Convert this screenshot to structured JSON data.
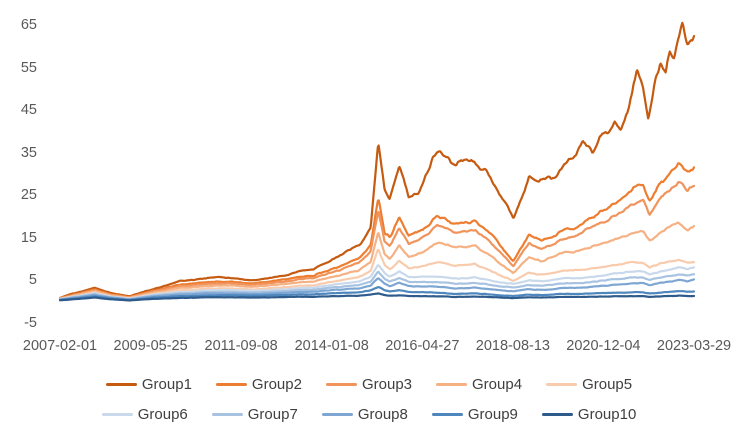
{
  "chart_data": {
    "type": "line",
    "title": "",
    "grid": false,
    "legend_position": "bottom",
    "x_axis": {
      "tick_labels": [
        "2007-02-01",
        "2009-05-25",
        "2011-09-08",
        "2014-01-08",
        "2016-04-27",
        "2018-08-13",
        "2020-12-04",
        "2023-03-29"
      ]
    },
    "y_axis": {
      "ticks": [
        "65",
        "55",
        "45",
        "35",
        "25",
        "15",
        "5",
        "-5"
      ],
      "min": -5,
      "max": 67
    },
    "t_grid": [
      0,
      0.03,
      0.055,
      0.08,
      0.11,
      0.15,
      0.19,
      0.23,
      0.27,
      0.3,
      0.33,
      0.36,
      0.4,
      0.44,
      0.47,
      0.49,
      0.502,
      0.512,
      0.52,
      0.535,
      0.55,
      0.575,
      0.595,
      0.625,
      0.655,
      0.685,
      0.715,
      0.74,
      0.76,
      0.785,
      0.81,
      0.83,
      0.855,
      0.875,
      0.89,
      0.905,
      0.92,
      0.93,
      0.945,
      0.96,
      0.975,
      0.99,
      1.0
    ],
    "series": [
      {
        "name": "Group1",
        "color": "#C55A11",
        "t": [
          0,
          0.015,
          0.03,
          0.055,
          0.08,
          0.11,
          0.15,
          0.19,
          0.22,
          0.25,
          0.28,
          0.3,
          0.33,
          0.36,
          0.4,
          0.42,
          0.44,
          0.455,
          0.475,
          0.49,
          0.502,
          0.512,
          0.52,
          0.535,
          0.55,
          0.565,
          0.58,
          0.595,
          0.61,
          0.625,
          0.64,
          0.655,
          0.67,
          0.69,
          0.703,
          0.715,
          0.73,
          0.74,
          0.755,
          0.77,
          0.785,
          0.8,
          0.815,
          0.825,
          0.84,
          0.855,
          0.875,
          0.885,
          0.895,
          0.91,
          0.92,
          0.928,
          0.94,
          0.948,
          0.955,
          0.962,
          0.968,
          0.975,
          0.982,
          0.99,
          1.0
        ],
        "v": [
          0.8,
          1.6,
          2.2,
          3.2,
          2.0,
          1.2,
          3.0,
          4.8,
          5.2,
          5.6,
          5.3,
          4.8,
          5.4,
          6.2,
          7.8,
          9.0,
          10.5,
          11.8,
          13.5,
          17.0,
          37.0,
          26.0,
          24.0,
          32.0,
          24.5,
          26.0,
          31.0,
          34.8,
          33.0,
          32.0,
          33.5,
          31.5,
          30.5,
          26.0,
          23.5,
          20.0,
          25.0,
          30.0,
          28.5,
          29.5,
          30.0,
          32.5,
          34.5,
          38.0,
          35.0,
          39.0,
          41.5,
          40.5,
          44.0,
          54.5,
          50.5,
          43.5,
          54.5,
          56.5,
          54.0,
          59.0,
          57.0,
          61.5,
          65.0,
          61.5,
          63.5
        ]
      },
      {
        "name": "Group2",
        "color": "#ED7D31",
        "v": [
          0.7,
          1.9,
          2.8,
          1.7,
          1.0,
          2.6,
          4.0,
          4.4,
          4.6,
          4.1,
          4.6,
          5.2,
          6.2,
          8.0,
          10.0,
          13.0,
          24.0,
          16.0,
          15.0,
          19.5,
          15.5,
          17.5,
          19.5,
          18.0,
          18.5,
          15.0,
          9.6,
          16.0,
          14.5,
          16.0,
          17.0,
          19.0,
          21.0,
          23.0,
          24.5,
          26.5,
          27.5,
          24.0,
          28.0,
          30.0,
          32.5,
          30.5,
          32.0
        ]
      },
      {
        "name": "Group3",
        "color": "#F0945C",
        "v": [
          0.7,
          1.8,
          2.6,
          1.6,
          0.9,
          2.4,
          3.6,
          4.0,
          4.2,
          3.8,
          4.2,
          4.7,
          5.6,
          7.2,
          9.0,
          11.5,
          21.0,
          14.0,
          13.0,
          17.0,
          13.5,
          15.5,
          17.5,
          16.0,
          16.5,
          13.0,
          8.5,
          14.0,
          12.5,
          14.0,
          15.0,
          17.0,
          18.5,
          20.0,
          21.5,
          23.0,
          24.0,
          21.0,
          24.5,
          26.0,
          28.0,
          26.5,
          27.5
        ]
      },
      {
        "name": "Group4",
        "color": "#F5B183",
        "v": [
          0.6,
          1.6,
          2.4,
          1.4,
          0.8,
          2.1,
          3.2,
          3.5,
          3.7,
          3.3,
          3.7,
          4.1,
          4.8,
          6.0,
          7.2,
          9.0,
          16.0,
          11.0,
          10.0,
          13.0,
          10.5,
          12.0,
          13.5,
          12.5,
          12.8,
          10.0,
          6.8,
          10.5,
          9.5,
          11.0,
          11.5,
          12.5,
          13.5,
          14.5,
          15.2,
          16.0,
          16.5,
          14.5,
          16.5,
          17.5,
          18.5,
          17.0,
          18.0
        ]
      },
      {
        "name": "Group5",
        "color": "#F8CBAD",
        "v": [
          0.5,
          1.4,
          2.1,
          1.2,
          0.7,
          1.8,
          2.6,
          2.9,
          3.0,
          2.7,
          3.0,
          3.3,
          3.9,
          4.8,
          5.6,
          7.0,
          12.0,
          8.5,
          7.5,
          9.5,
          7.8,
          8.5,
          9.0,
          8.3,
          8.5,
          6.8,
          4.9,
          6.8,
          6.3,
          7.0,
          7.2,
          7.5,
          8.0,
          8.5,
          8.8,
          9.2,
          9.0,
          8.2,
          9.0,
          9.3,
          9.8,
          9.2,
          9.5
        ]
      },
      {
        "name": "Group6",
        "color": "#C9D9EB",
        "v": [
          0.5,
          1.3,
          1.9,
          1.1,
          0.6,
          1.6,
          2.2,
          2.5,
          2.6,
          2.4,
          2.6,
          2.8,
          3.3,
          4.0,
          4.6,
          5.6,
          8.5,
          6.5,
          5.8,
          7.0,
          5.8,
          5.9,
          5.6,
          5.3,
          5.4,
          4.7,
          4.2,
          5.0,
          4.8,
          5.2,
          5.4,
          5.6,
          6.0,
          6.5,
          6.7,
          7.0,
          7.0,
          6.5,
          7.1,
          7.4,
          7.9,
          7.6,
          8.2
        ]
      },
      {
        "name": "Group7",
        "color": "#A7C3E1",
        "v": [
          0.4,
          1.2,
          1.7,
          1.0,
          0.5,
          1.4,
          1.9,
          2.1,
          2.2,
          2.0,
          2.2,
          2.4,
          2.8,
          3.3,
          3.8,
          4.5,
          6.8,
          5.2,
          4.6,
          5.5,
          4.6,
          4.6,
          4.4,
          4.1,
          4.2,
          3.7,
          3.3,
          3.9,
          3.7,
          4.1,
          4.2,
          4.4,
          4.8,
          5.2,
          5.3,
          5.6,
          5.6,
          5.2,
          5.7,
          5.9,
          6.3,
          6.1,
          6.6
        ]
      },
      {
        "name": "Group8",
        "color": "#7EA6D3",
        "v": [
          0.4,
          1.0,
          1.5,
          0.9,
          0.4,
          1.2,
          1.6,
          1.8,
          1.8,
          1.7,
          1.8,
          2.0,
          2.3,
          2.7,
          3.0,
          3.6,
          5.4,
          4.1,
          3.6,
          4.3,
          3.6,
          3.6,
          3.3,
          3.0,
          3.1,
          2.7,
          2.4,
          2.9,
          2.7,
          3.0,
          3.1,
          3.3,
          3.6,
          3.9,
          4.0,
          4.2,
          4.3,
          3.9,
          4.4,
          4.6,
          5.0,
          4.8,
          5.2
        ]
      },
      {
        "name": "Group9",
        "color": "#4E86BE",
        "v": [
          0.3,
          0.8,
          1.2,
          0.7,
          0.3,
          0.9,
          1.2,
          1.3,
          1.4,
          1.3,
          1.4,
          1.5,
          1.7,
          1.9,
          2.1,
          2.5,
          3.3,
          2.6,
          2.3,
          2.6,
          2.2,
          2.2,
          1.9,
          1.7,
          1.8,
          1.5,
          1.3,
          1.6,
          1.5,
          1.7,
          1.7,
          1.8,
          1.9,
          2.0,
          2.0,
          2.1,
          2.1,
          1.9,
          2.1,
          2.2,
          2.4,
          2.3,
          2.4
        ]
      },
      {
        "name": "Group10",
        "color": "#2E5B8C",
        "v": [
          0.2,
          0.6,
          0.9,
          0.5,
          0.2,
          0.6,
          0.8,
          0.9,
          0.9,
          0.85,
          0.9,
          1.0,
          1.1,
          1.2,
          1.3,
          1.5,
          1.8,
          1.4,
          1.3,
          1.4,
          1.25,
          1.25,
          1.1,
          1.0,
          1.05,
          0.95,
          0.8,
          0.95,
          0.9,
          1.0,
          1.0,
          1.05,
          1.1,
          1.15,
          1.15,
          1.2,
          1.2,
          1.1,
          1.2,
          1.25,
          1.3,
          1.25,
          1.3
        ]
      }
    ]
  }
}
